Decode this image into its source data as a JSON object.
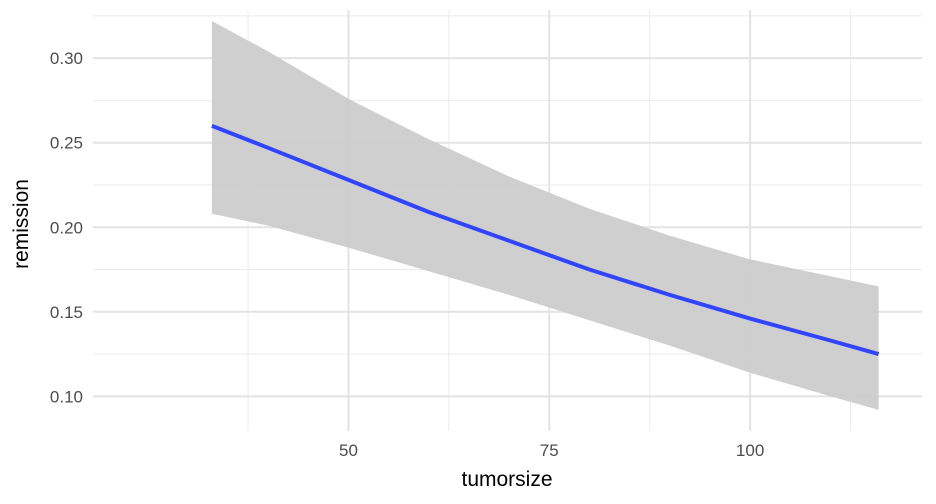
{
  "chart_data": {
    "type": "line",
    "title": "",
    "xlabel": "tumorsize",
    "ylabel": "remission",
    "xlim": [
      18.2,
      121.4
    ],
    "ylim": [
      0.0795,
      0.3285
    ],
    "x_ticks": [
      50,
      75,
      100
    ],
    "x_minor_ticks": [
      37.5,
      62.5,
      87.5,
      112.5
    ],
    "y_ticks": [
      0.1,
      0.15,
      0.2,
      0.25,
      0.3
    ],
    "y_minor_ticks": [
      0.125,
      0.175,
      0.225,
      0.275,
      0.325
    ],
    "x_tick_labels": [
      "50",
      "75",
      "100"
    ],
    "y_tick_labels": [
      "0.10",
      "0.15",
      "0.20",
      "0.25",
      "0.30"
    ],
    "grid": true,
    "legend": "none",
    "series": [
      {
        "x": [
          33,
          40,
          50,
          60,
          70,
          80,
          90,
          100,
          110,
          116
        ],
        "y": [
          0.26,
          0.247,
          0.228,
          0.209,
          0.192,
          0.175,
          0.16,
          0.146,
          0.133,
          0.125
        ],
        "lower": [
          0.208,
          0.201,
          0.188,
          0.174,
          0.16,
          0.145,
          0.13,
          0.114,
          0.1,
          0.092
        ],
        "upper": [
          0.322,
          0.304,
          0.276,
          0.252,
          0.23,
          0.211,
          0.195,
          0.181,
          0.171,
          0.165
        ],
        "color": "#3344ff",
        "band_color": "#cccccc"
      }
    ]
  }
}
